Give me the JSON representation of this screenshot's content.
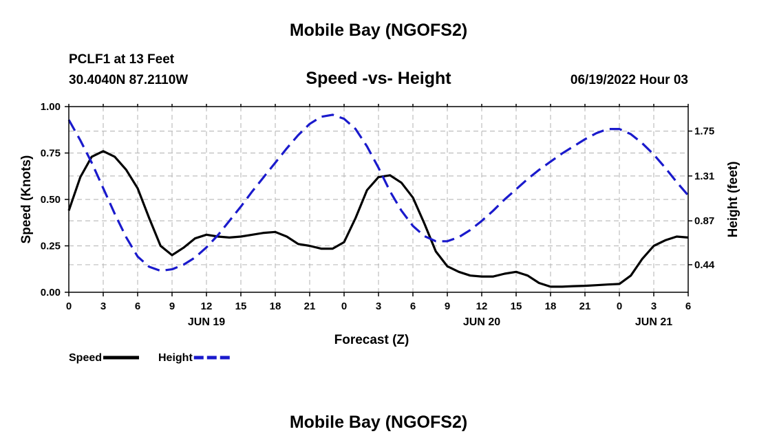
{
  "header": {
    "title": "Mobile Bay (NGOFS2)",
    "station": "PCLF1 at 13 Feet",
    "coords": "30.4040N  87.2110W",
    "subtitle": "Speed -vs- Height",
    "datetime": "06/19/2022 Hour 03"
  },
  "footer": {
    "title": "Mobile Bay (NGOFS2)"
  },
  "chart_data": {
    "type": "line",
    "title": "Speed -vs- Height",
    "xlabel": "Forecast (Z)",
    "ylabel_left": "Speed (Knots)",
    "ylabel_right": "Height (feet)",
    "x_range": [
      0,
      54
    ],
    "x_ticks": [
      {
        "t": 0,
        "label": "0"
      },
      {
        "t": 3,
        "label": "3"
      },
      {
        "t": 6,
        "label": "6"
      },
      {
        "t": 9,
        "label": "9"
      },
      {
        "t": 12,
        "label": "12"
      },
      {
        "t": 15,
        "label": "15"
      },
      {
        "t": 18,
        "label": "18"
      },
      {
        "t": 21,
        "label": "21"
      },
      {
        "t": 24,
        "label": "0"
      },
      {
        "t": 27,
        "label": "3"
      },
      {
        "t": 30,
        "label": "6"
      },
      {
        "t": 33,
        "label": "9"
      },
      {
        "t": 36,
        "label": "12"
      },
      {
        "t": 39,
        "label": "15"
      },
      {
        "t": 42,
        "label": "18"
      },
      {
        "t": 45,
        "label": "21"
      },
      {
        "t": 48,
        "label": "0"
      },
      {
        "t": 51,
        "label": "3"
      },
      {
        "t": 54,
        "label": "6"
      }
    ],
    "day_labels": [
      {
        "t": 12,
        "label": "JUN 19"
      },
      {
        "t": 36,
        "label": "JUN 20"
      },
      {
        "t": 51,
        "label": "JUN 21"
      }
    ],
    "y_left_range": [
      0,
      1.0
    ],
    "y_left_ticks": [
      "0.00",
      "0.25",
      "0.50",
      "0.75",
      "1.00"
    ],
    "y_right_range": [
      0.17,
      1.99
    ],
    "y_right_ticks": [
      "0.44",
      "0.87",
      "1.31",
      "1.75"
    ],
    "grid": true,
    "legend": "bottom-left",
    "series": [
      {
        "name": "Speed",
        "axis": "left",
        "color": "#000000",
        "style": "solid",
        "points": [
          [
            0,
            0.44
          ],
          [
            1,
            0.62
          ],
          [
            2,
            0.73
          ],
          [
            3,
            0.76
          ],
          [
            4,
            0.73
          ],
          [
            5,
            0.66
          ],
          [
            6,
            0.56
          ],
          [
            7,
            0.4
          ],
          [
            8,
            0.25
          ],
          [
            9,
            0.2
          ],
          [
            10,
            0.24
          ],
          [
            11,
            0.29
          ],
          [
            12,
            0.31
          ],
          [
            13,
            0.3
          ],
          [
            14,
            0.295
          ],
          [
            15,
            0.3
          ],
          [
            16,
            0.31
          ],
          [
            17,
            0.32
          ],
          [
            18,
            0.325
          ],
          [
            19,
            0.3
          ],
          [
            20,
            0.26
          ],
          [
            21,
            0.25
          ],
          [
            22,
            0.235
          ],
          [
            23,
            0.235
          ],
          [
            24,
            0.27
          ],
          [
            25,
            0.4
          ],
          [
            26,
            0.55
          ],
          [
            27,
            0.62
          ],
          [
            28,
            0.63
          ],
          [
            29,
            0.59
          ],
          [
            30,
            0.51
          ],
          [
            31,
            0.37
          ],
          [
            32,
            0.22
          ],
          [
            33,
            0.14
          ],
          [
            34,
            0.11
          ],
          [
            35,
            0.09
          ],
          [
            36,
            0.085
          ],
          [
            37,
            0.085
          ],
          [
            38,
            0.1
          ],
          [
            39,
            0.11
          ],
          [
            40,
            0.09
          ],
          [
            41,
            0.05
          ],
          [
            42,
            0.03
          ],
          [
            43,
            0.03
          ],
          [
            44,
            0.033
          ],
          [
            45,
            0.035
          ],
          [
            46,
            0.038
          ],
          [
            47,
            0.042
          ],
          [
            48,
            0.045
          ],
          [
            49,
            0.09
          ],
          [
            50,
            0.18
          ],
          [
            51,
            0.25
          ],
          [
            52,
            0.28
          ],
          [
            53,
            0.3
          ],
          [
            54,
            0.295
          ]
        ]
      },
      {
        "name": "Height",
        "axis": "right",
        "color": "#1a1acc",
        "style": "dashed",
        "points": [
          [
            0,
            1.86
          ],
          [
            1,
            1.66
          ],
          [
            2,
            1.44
          ],
          [
            3,
            1.19
          ],
          [
            4,
            0.94
          ],
          [
            5,
            0.71
          ],
          [
            6,
            0.52
          ],
          [
            7,
            0.42
          ],
          [
            8,
            0.38
          ],
          [
            9,
            0.395
          ],
          [
            10,
            0.44
          ],
          [
            11,
            0.51
          ],
          [
            12,
            0.61
          ],
          [
            13,
            0.73
          ],
          [
            14,
            0.87
          ],
          [
            15,
            1.01
          ],
          [
            16,
            1.16
          ],
          [
            17,
            1.3
          ],
          [
            18,
            1.44
          ],
          [
            19,
            1.58
          ],
          [
            20,
            1.71
          ],
          [
            21,
            1.82
          ],
          [
            22,
            1.89
          ],
          [
            23,
            1.91
          ],
          [
            24,
            1.87
          ],
          [
            25,
            1.77
          ],
          [
            26,
            1.6
          ],
          [
            27,
            1.39
          ],
          [
            28,
            1.16
          ],
          [
            29,
            0.97
          ],
          [
            30,
            0.82
          ],
          [
            31,
            0.72
          ],
          [
            32,
            0.67
          ],
          [
            33,
            0.67
          ],
          [
            34,
            0.71
          ],
          [
            35,
            0.78
          ],
          [
            36,
            0.87
          ],
          [
            37,
            0.97
          ],
          [
            38,
            1.08
          ],
          [
            39,
            1.18
          ],
          [
            40,
            1.28
          ],
          [
            41,
            1.37
          ],
          [
            42,
            1.45
          ],
          [
            43,
            1.53
          ],
          [
            44,
            1.6
          ],
          [
            45,
            1.67
          ],
          [
            46,
            1.73
          ],
          [
            47,
            1.77
          ],
          [
            48,
            1.77
          ],
          [
            49,
            1.72
          ],
          [
            50,
            1.63
          ],
          [
            51,
            1.52
          ],
          [
            52,
            1.39
          ],
          [
            53,
            1.25
          ],
          [
            54,
            1.12
          ]
        ]
      }
    ]
  }
}
